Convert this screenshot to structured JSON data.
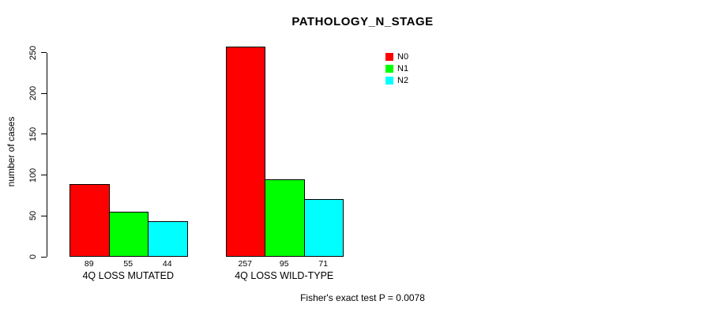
{
  "chart_data": {
    "type": "bar",
    "title": "PATHOLOGY_N_STAGE",
    "ylabel": "number of cases",
    "xlabel": "",
    "categories": [
      "4Q LOSS MUTATED",
      "4Q LOSS WILD-TYPE"
    ],
    "series": [
      {
        "name": "N0",
        "color": "#ff0000",
        "values": [
          89,
          257
        ]
      },
      {
        "name": "N1",
        "color": "#00ff00",
        "values": [
          55,
          95
        ]
      },
      {
        "name": "N2",
        "color": "#00ffff",
        "values": [
          44,
          71
        ]
      }
    ],
    "yticks": [
      0,
      50,
      100,
      150,
      200,
      250
    ],
    "ylim": [
      0,
      260
    ],
    "grid": false,
    "legend_position": "top-right",
    "bar_value_labels": [
      [
        "89",
        "55",
        "44"
      ],
      [
        "257",
        "95",
        "71"
      ]
    ],
    "annotation": "Fisher's exact test P = 0.0078",
    "colors": {
      "background": "#ffffff",
      "axis": "#000000",
      "text": "#000000"
    }
  }
}
